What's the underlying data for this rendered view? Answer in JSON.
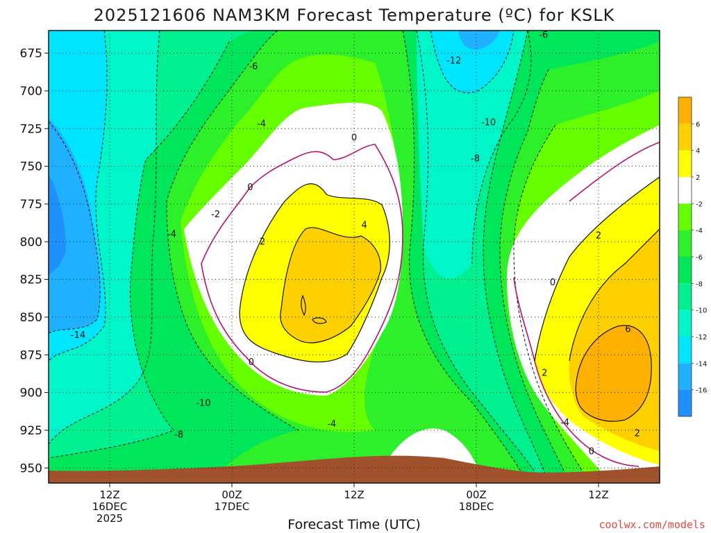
{
  "chart_data": {
    "type": "heatmap",
    "title": "2025121606 NAM3KM Forecast Temperature (ºC) for KSLK",
    "xlabel": "Forecast Time (UTC)",
    "ylabel": "",
    "y_ticks": [
      675,
      700,
      725,
      750,
      775,
      800,
      825,
      850,
      875,
      900,
      925,
      950
    ],
    "y_range": [
      660,
      960
    ],
    "x_ticks": [
      {
        "hour": 6,
        "lines": [
          "12Z",
          "16DEC",
          "2025"
        ]
      },
      {
        "hour": 18,
        "lines": [
          "00Z",
          "17DEC"
        ]
      },
      {
        "hour": 30,
        "lines": [
          "12Z"
        ]
      },
      {
        "hour": 42,
        "lines": [
          "00Z",
          "18DEC"
        ]
      },
      {
        "hour": 54,
        "lines": [
          "12Z"
        ]
      }
    ],
    "x_range": [
      0,
      60
    ],
    "grid": true,
    "colorbar": {
      "levels": [
        -16,
        -14,
        -12,
        -10,
        -8,
        -6,
        -4,
        -2,
        2,
        4,
        6
      ],
      "colors": [
        "#1e90ff",
        "#1fb1ff",
        "#00e5ff",
        "#00f5c8",
        "#00f090",
        "#00e65a",
        "#2ef02a",
        "#66ff00",
        "#ffffff",
        "#ffff00",
        "#ffd000",
        "#ffb000"
      ]
    },
    "contour_labels": [
      {
        "text": "-6",
        "hour": 20.1,
        "p": 684
      },
      {
        "text": "-4",
        "hour": 20.9,
        "p": 722
      },
      {
        "text": "0",
        "hour": 30.0,
        "p": 731
      },
      {
        "text": "-2",
        "hour": 16.4,
        "p": 782
      },
      {
        "text": "0",
        "hour": 19.8,
        "p": 764
      },
      {
        "text": "-4",
        "hour": 12.1,
        "p": 795
      },
      {
        "text": "2",
        "hour": 21.0,
        "p": 800
      },
      {
        "text": "4",
        "hour": 31.0,
        "p": 789
      },
      {
        "text": "0",
        "hour": 19.9,
        "p": 880
      },
      {
        "text": "-14",
        "hour": 2.9,
        "p": 862
      },
      {
        "text": "-10",
        "hour": 15.2,
        "p": 907
      },
      {
        "text": "-8",
        "hour": 12.8,
        "p": 928
      },
      {
        "text": "-4",
        "hour": 27.8,
        "p": 921
      },
      {
        "text": "-12",
        "hour": 39.8,
        "p": 680
      },
      {
        "text": "-10",
        "hour": 43.2,
        "p": 721
      },
      {
        "text": "-8",
        "hour": 41.9,
        "p": 745
      },
      {
        "text": "-6",
        "hour": 48.6,
        "p": 663
      },
      {
        "text": "0",
        "hour": 49.5,
        "p": 827
      },
      {
        "text": "2",
        "hour": 54.0,
        "p": 796
      },
      {
        "text": "6",
        "hour": 56.9,
        "p": 858
      },
      {
        "text": "2",
        "hour": 48.7,
        "p": 887
      },
      {
        "text": "-4",
        "hour": 50.7,
        "p": 920
      },
      {
        "text": "0",
        "hour": 53.3,
        "p": 939
      },
      {
        "text": "2",
        "hour": 57.8,
        "p": 927
      }
    ]
  },
  "credit": "coolwx.com/models"
}
